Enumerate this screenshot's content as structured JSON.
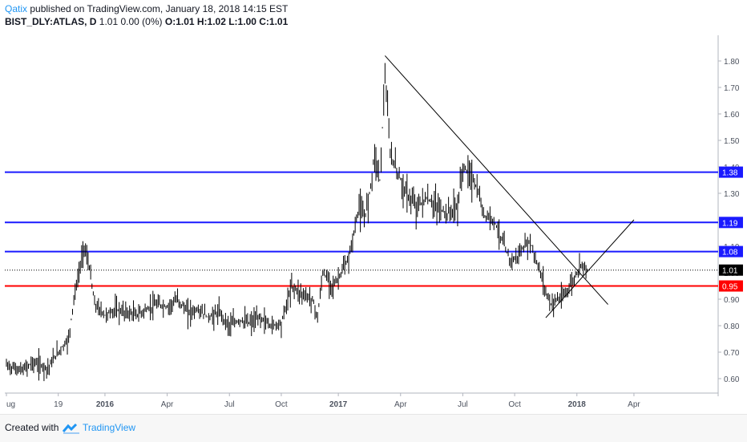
{
  "header": {
    "author": "Qatix",
    "published": " published on TradingView.com, January 18, 2018 14:15 EST",
    "symbol": "BIST_DLY:ATLAS, D",
    "quote": "1.01  0.00 (0%)",
    "ohlc": "O:1.01 H:1.02 L:1.00 C:1.01"
  },
  "footer": {
    "created_with": "Created with",
    "brand": "TradingView"
  },
  "chart_data": {
    "type": "bar",
    "subtype": "ohlc",
    "title": "",
    "xlabel": "",
    "ylabel": "",
    "ylim": [
      0.55,
      1.88
    ],
    "y_ticks": [
      "0.60",
      "0.70",
      "0.80",
      "0.90",
      "1.00",
      "1.10",
      "1.20",
      "1.30",
      "1.40",
      "1.50",
      "1.60",
      "1.70",
      "1.80"
    ],
    "x_range": [
      0,
      119
    ],
    "x_ticks": [
      {
        "label": "ug",
        "t": 0,
        "bold": false
      },
      {
        "label": "19",
        "t": 10,
        "bold": false
      },
      {
        "label": "2016",
        "t": 19,
        "bold": true
      },
      {
        "label": "Apr",
        "t": 31,
        "bold": false
      },
      {
        "label": "Jul",
        "t": 43,
        "bold": false
      },
      {
        "label": "Oct",
        "t": 53,
        "bold": false
      },
      {
        "label": "2017",
        "t": 64,
        "bold": true
      },
      {
        "label": "Apr",
        "t": 76,
        "bold": false
      },
      {
        "label": "Jul",
        "t": 88,
        "bold": false
      },
      {
        "label": "Oct",
        "t": 98,
        "bold": false
      },
      {
        "label": "2018",
        "t": 110,
        "bold": true
      },
      {
        "label": "Apr",
        "t": 121,
        "bold": false
      }
    ],
    "price_points": [
      [
        0,
        0.65
      ],
      [
        3,
        0.63
      ],
      [
        5,
        0.66
      ],
      [
        8,
        0.64
      ],
      [
        10,
        0.7
      ],
      [
        12,
        0.75
      ],
      [
        13,
        0.9
      ],
      [
        15,
        1.1
      ],
      [
        16,
        1.02
      ],
      [
        17,
        0.88
      ],
      [
        19,
        0.84
      ],
      [
        21,
        0.86
      ],
      [
        23,
        0.85
      ],
      [
        25,
        0.84
      ],
      [
        27,
        0.86
      ],
      [
        29,
        0.88
      ],
      [
        31,
        0.87
      ],
      [
        33,
        0.9
      ],
      [
        35,
        0.85
      ],
      [
        37,
        0.86
      ],
      [
        39,
        0.83
      ],
      [
        41,
        0.85
      ],
      [
        43,
        0.8
      ],
      [
        45,
        0.82
      ],
      [
        47,
        0.81
      ],
      [
        49,
        0.83
      ],
      [
        51,
        0.8
      ],
      [
        53,
        0.81
      ],
      [
        55,
        0.95
      ],
      [
        57,
        0.92
      ],
      [
        59,
        0.9
      ],
      [
        60,
        0.83
      ],
      [
        61,
        1.0
      ],
      [
        63,
        0.95
      ],
      [
        64,
        0.98
      ],
      [
        66,
        1.05
      ],
      [
        67,
        1.15
      ],
      [
        68,
        1.25
      ],
      [
        69,
        1.2
      ],
      [
        70,
        1.3
      ],
      [
        71,
        1.45
      ],
      [
        72,
        1.35
      ],
      [
        73,
        1.75
      ],
      [
        74,
        1.45
      ],
      [
        75,
        1.4
      ],
      [
        76,
        1.35
      ],
      [
        77,
        1.3
      ],
      [
        79,
        1.25
      ],
      [
        81,
        1.28
      ],
      [
        83,
        1.25
      ],
      [
        85,
        1.22
      ],
      [
        87,
        1.25
      ],
      [
        88,
        1.4
      ],
      [
        89,
        1.38
      ],
      [
        90,
        1.35
      ],
      [
        91,
        1.3
      ],
      [
        92,
        1.22
      ],
      [
        94,
        1.2
      ],
      [
        95,
        1.15
      ],
      [
        96,
        1.1
      ],
      [
        97,
        1.05
      ],
      [
        98,
        1.05
      ],
      [
        100,
        1.1
      ],
      [
        101,
        1.12
      ],
      [
        102,
        1.05
      ],
      [
        103,
        1.0
      ],
      [
        104,
        0.93
      ],
      [
        105,
        0.88
      ],
      [
        106,
        0.9
      ],
      [
        107,
        0.9
      ],
      [
        108,
        0.93
      ],
      [
        109,
        0.96
      ],
      [
        110,
        1.0
      ],
      [
        111,
        1.04
      ],
      [
        112,
        1.01
      ]
    ],
    "price_lines": [
      {
        "value": 1.38,
        "label": "1.38",
        "color": "#1a1aff"
      },
      {
        "value": 1.19,
        "label": "1.19",
        "color": "#1a1aff"
      },
      {
        "value": 1.08,
        "label": "1.08",
        "color": "#1a1aff"
      },
      {
        "value": 1.01,
        "label": "1.01",
        "color": "#000000",
        "style": "dotted"
      },
      {
        "value": 0.95,
        "label": "0.95",
        "color": "#ff0000"
      }
    ],
    "trend_lines": [
      {
        "from": [
          73,
          1.82
        ],
        "to": [
          116,
          0.88
        ]
      },
      {
        "from": [
          104,
          0.83
        ],
        "to": [
          121,
          1.2
        ]
      }
    ],
    "colors": {
      "bars": "#000000",
      "axis": "#b2b5be",
      "labels": "#4c525e"
    }
  }
}
